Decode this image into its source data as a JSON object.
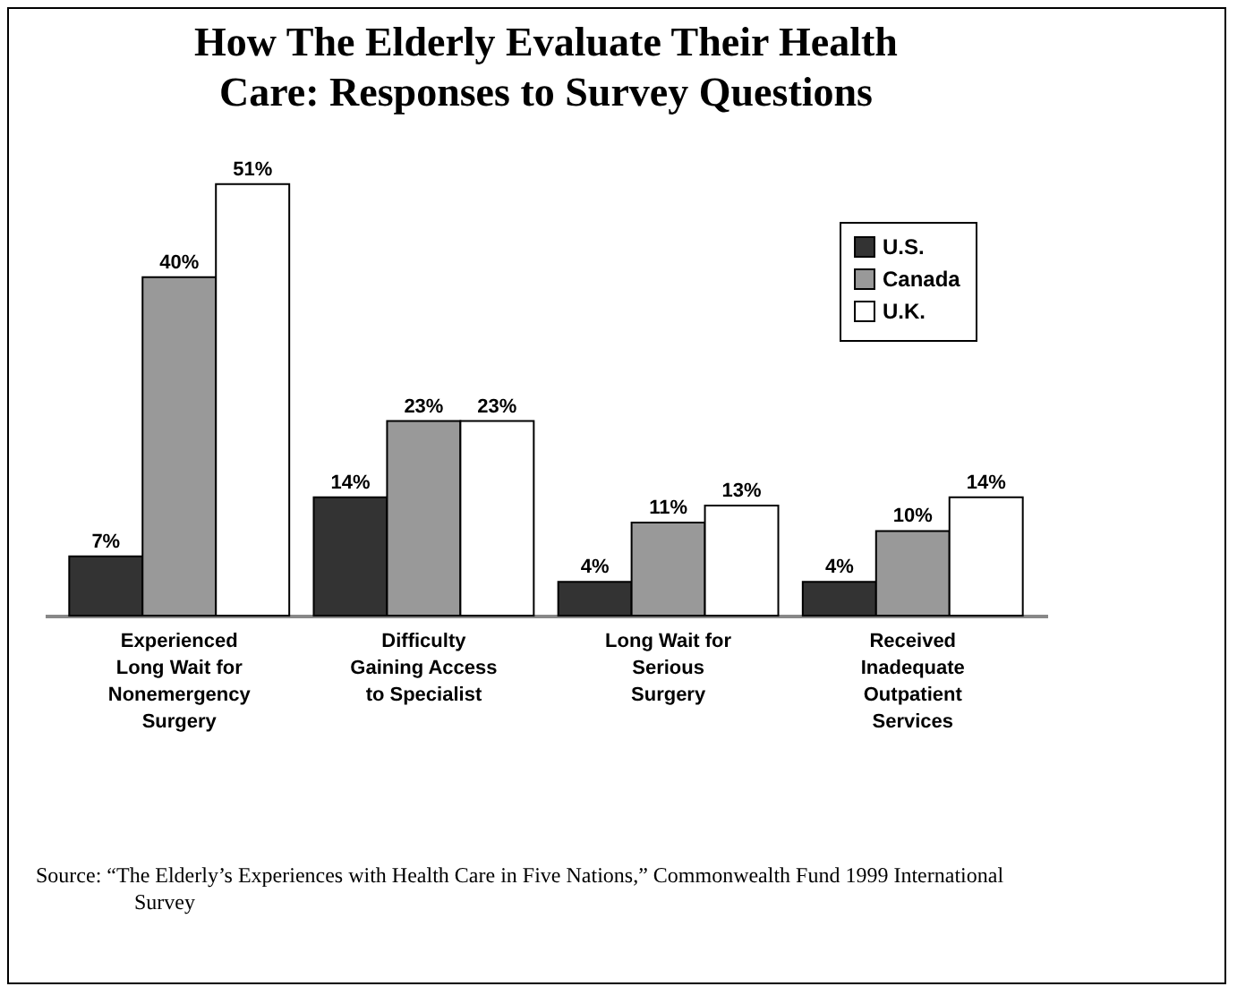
{
  "chart_data": {
    "type": "bar",
    "title": "How The Elderly Evaluate Their Health Care: Responses to Survey Questions",
    "categories": [
      "Experienced Long Wait for Nonemergency Surgery",
      "Difficulty Gaining Access to Specialist",
      "Long Wait for Serious Surgery",
      "Received Inadequate Outpatient Services"
    ],
    "series": [
      {
        "name": "U.S.",
        "color": "#333333",
        "values": [
          7,
          14,
          4,
          4
        ],
        "value_labels": [
          "7%",
          "14%",
          "4%",
          "4%"
        ]
      },
      {
        "name": "Canada",
        "color": "#999999",
        "values": [
          40,
          23,
          11,
          10
        ],
        "value_labels": [
          "40%",
          "23%",
          "11%",
          "10%"
        ]
      },
      {
        "name": "U.K.",
        "color": "#ffffff",
        "values": [
          51,
          23,
          13,
          14
        ],
        "value_labels": [
          "51%",
          "23%",
          "13%",
          "14%"
        ]
      }
    ],
    "legend": "top right",
    "tick_labels": "x",
    "annotations": [
      "Source: “The Elderly’s Experiences with Health Care in Five Nations,” Commonwealth Fund 1999 International Survey"
    ]
  }
}
